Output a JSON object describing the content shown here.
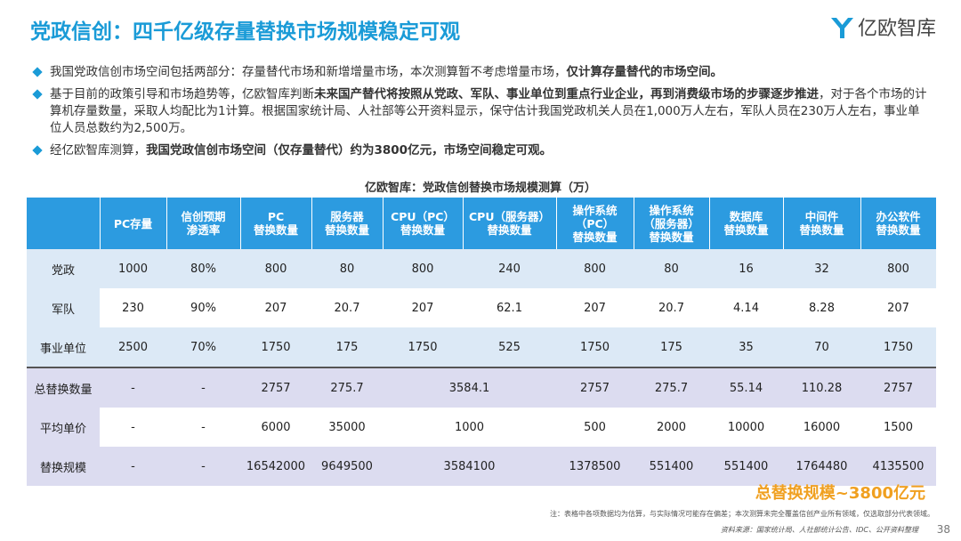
{
  "header": {
    "title": "党政信创：四千亿级存量替换市场规模稳定可观",
    "logo": "亿欧智库"
  },
  "bullets": [
    [
      {
        "text": "我国党政信创市场空间包括两部分：存量替代市场和新增增量市场，本次测算暂不考虑增量市场，",
        "bold": false
      },
      {
        "text": "仅计算存量替代的市场空间。",
        "bold": true
      }
    ],
    [
      {
        "text": "基于目前的政策引导和市场趋势等，亿欧智库判断",
        "bold": false
      },
      {
        "text": "未来国产替代将按照从党政、军队、事业单位到重点行业企业，再到消费级市场的步骤逐步推进",
        "bold": true
      },
      {
        "text": "，对于各个市场的计算机存量数量，采取人均配比为1计算。根据国家统计局、人社部等公开资料显示，保守估计我国党政机关人员在1,000万人左右，军队人员在230万人左右，事业单位人员总数约为2,500万。",
        "bold": false
      }
    ],
    [
      {
        "text": "经亿欧智库测算，",
        "bold": false
      },
      {
        "text": "我国党政信创市场空间（仅存量替代）约为3800亿元，市场空间稳定可观。",
        "bold": true
      }
    ]
  ],
  "table": {
    "title": "亿欧智库：党政信创替换市场规模测算（万）",
    "header": [
      [
        "PC存量"
      ],
      [
        "信创预期",
        "渗透率"
      ],
      [
        "PC",
        "替换数量"
      ],
      [
        "服务器",
        "替换数量"
      ],
      [
        "CPU（PC）",
        "替换数量"
      ],
      [
        "CPU（服务器）",
        "替换数量"
      ],
      [
        "操作系统",
        "（PC）",
        "替换数量"
      ],
      [
        "操作系统",
        "（服务器）",
        "替换数量"
      ],
      [
        "数据库",
        "替换数量"
      ],
      [
        "中间件",
        "替换数量"
      ],
      [
        "办公软件",
        "替换数量"
      ]
    ],
    "rows": [
      {
        "label": "党政",
        "cells": [
          "1000",
          "80%",
          "800",
          "80",
          "800",
          "240",
          "800",
          "80",
          "16",
          "32",
          "800"
        ]
      },
      {
        "label": "军队",
        "cells": [
          "230",
          "90%",
          "207",
          "20.7",
          "207",
          "62.1",
          "207",
          "20.7",
          "4.14",
          "8.28",
          "207"
        ]
      },
      {
        "label": "事业单位",
        "cells": [
          "2500",
          "70%",
          "1750",
          "175",
          "1750",
          "525",
          "1750",
          "175",
          "35",
          "70",
          "1750"
        ]
      },
      {
        "label": "总替换数量",
        "cells": [
          "-",
          "-",
          "2757",
          "275.7",
          "3584.1",
          "2757",
          "275.7",
          "55.14",
          "110.28",
          "2757"
        ]
      },
      {
        "label": "平均单价",
        "cells": [
          "-",
          "-",
          "6000",
          "35000",
          "1000",
          "500",
          "2000",
          "10000",
          "16000",
          "1500"
        ]
      },
      {
        "label": "替换规模",
        "cells": [
          "-",
          "-",
          "16542000",
          "9649500",
          "3584100",
          "1378500",
          "551400",
          "551400",
          "1764480",
          "4135500"
        ]
      }
    ]
  },
  "footer": {
    "highlight": "总替换规模~3800亿元",
    "note": "注：表格中各项数据均为估算，与实际情况可能存在偏差；本次测算未完全覆盖信创产业所有领域，仅选取部分代表领域。",
    "source": "资料来源：国家统计局、人社部统计公告、IDC、公开资料整理",
    "page": "38"
  }
}
